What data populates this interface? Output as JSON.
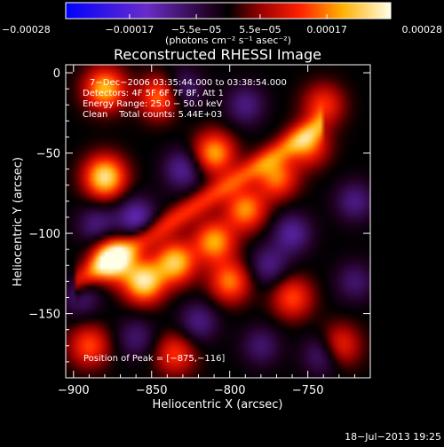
{
  "chart_data": {
    "type": "heatmap",
    "title": "Reconstructed RHESSI Image",
    "xlabel": "Heliocentric X (arcsec)",
    "ylabel": "Heliocentric Y (arcsec)",
    "xlim": [
      -905,
      -710
    ],
    "ylim": [
      -190,
      5
    ],
    "xticks": [
      -900,
      -850,
      -800,
      -750
    ],
    "xtick_labels": [
      "−900",
      "−850",
      "−800",
      "−750"
    ],
    "yticks": [
      0,
      -50,
      -100,
      -150
    ],
    "ytick_labels": [
      "0",
      "−50",
      "−100",
      "−150"
    ],
    "colorbar": {
      "min": -0.00028,
      "max": 0.00028,
      "ticks": [
        -0.00028,
        -0.00017,
        -5.5e-05,
        5.5e-05,
        0.00017,
        0.00028
      ],
      "tick_labels": [
        "−0.00028",
        "−0.00017",
        "−5.5e−05",
        "5.5e−05",
        "0.00017",
        "0.00028"
      ],
      "unit_label": "(photons cm⁻² s⁻¹ asec⁻²)"
    },
    "annotations": [
      "7−Dec−2006 03:35:44.000 to 03:38:54.000",
      "Detectors: 4F 5F 6F 7F 8F, Att 1",
      "Energy Range: 25.0 − 50.0 keV",
      "Clean    Total counts: 5.44E+03"
    ],
    "peak_label": "Position of Peak = [−875,−116]",
    "peak": [
      -875,
      -116
    ],
    "sources": [
      {
        "x": -875,
        "y": -116,
        "amp": 1.0
      },
      {
        "x": -855,
        "y": -130,
        "amp": 0.9
      },
      {
        "x": -835,
        "y": -118,
        "amp": 0.8
      },
      {
        "x": -810,
        "y": -105,
        "amp": 0.7
      },
      {
        "x": -790,
        "y": -85,
        "amp": 0.65
      },
      {
        "x": -770,
        "y": -65,
        "amp": 0.6
      },
      {
        "x": -750,
        "y": -45,
        "amp": 0.55
      },
      {
        "x": -880,
        "y": -65,
        "amp": 0.9
      },
      {
        "x": -880,
        "y": -10,
        "amp": 0.75
      },
      {
        "x": -845,
        "y": -15,
        "amp": 0.6
      },
      {
        "x": -810,
        "y": -50,
        "amp": 0.7
      },
      {
        "x": -800,
        "y": -130,
        "amp": 0.6
      },
      {
        "x": -760,
        "y": -140,
        "amp": 0.5
      },
      {
        "x": -730,
        "y": -170,
        "amp": 0.5
      },
      {
        "x": -740,
        "y": -20,
        "amp": 0.45
      },
      {
        "x": -890,
        "y": -170,
        "amp": 0.5
      },
      {
        "x": -835,
        "y": -175,
        "amp": 0.45
      }
    ],
    "negatives": [
      {
        "x": -860,
        "y": -90,
        "amp": 0.8
      },
      {
        "x": -885,
        "y": -95,
        "amp": 0.6
      },
      {
        "x": -830,
        "y": -60,
        "amp": 0.7
      },
      {
        "x": -830,
        "y": -10,
        "amp": 0.6
      },
      {
        "x": -790,
        "y": -20,
        "amp": 0.6
      },
      {
        "x": -760,
        "y": -100,
        "amp": 0.7
      },
      {
        "x": -720,
        "y": -80,
        "amp": 0.6
      },
      {
        "x": -820,
        "y": -155,
        "amp": 0.6
      },
      {
        "x": -780,
        "y": -170,
        "amp": 0.5
      },
      {
        "x": -740,
        "y": -175,
        "amp": 0.7
      },
      {
        "x": -895,
        "y": -140,
        "amp": 0.5
      },
      {
        "x": -775,
        "y": -120,
        "amp": 0.6
      },
      {
        "x": -720,
        "y": -130,
        "amp": 0.5
      },
      {
        "x": -860,
        "y": -165,
        "amp": 0.5
      }
    ]
  },
  "timestamp": "18−Jul−2013 19:25"
}
